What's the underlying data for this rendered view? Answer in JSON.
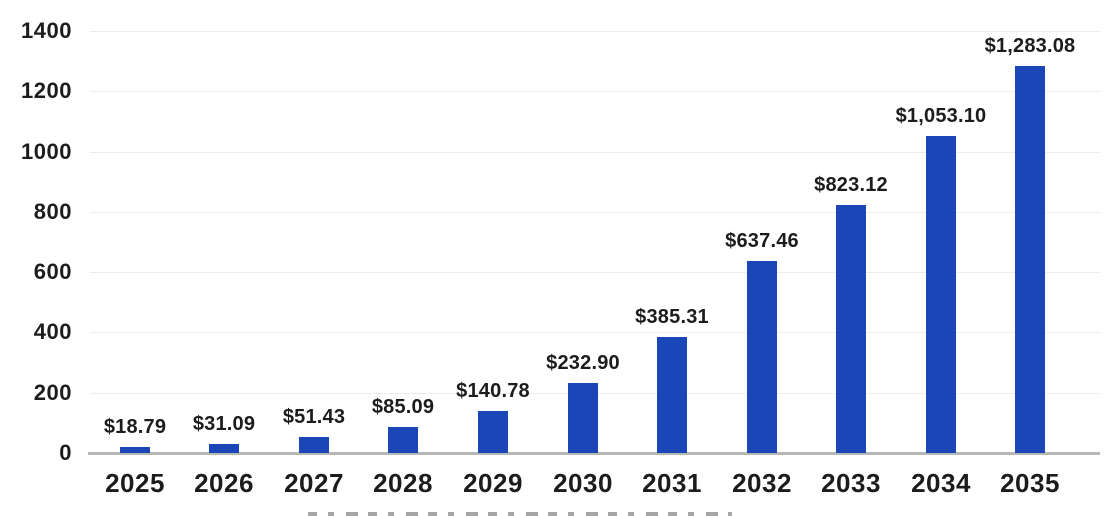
{
  "chart_data": {
    "type": "bar",
    "title": "",
    "categories": [
      "2025",
      "2026",
      "2027",
      "2028",
      "2029",
      "2030",
      "2031",
      "2032",
      "2033",
      "2034",
      "2035"
    ],
    "values": [
      18.79,
      31.09,
      51.43,
      85.09,
      140.78,
      232.9,
      385.31,
      637.46,
      823.12,
      1053.1,
      1283.08
    ],
    "data_labels": [
      "$18.79",
      "$31.09",
      "$51.43",
      "$85.09",
      "$140.78",
      "$232.90",
      "$385.31",
      "$637.46",
      "$823.12",
      "$1,053.10",
      "$1,283.08"
    ],
    "xlabel": "",
    "ylabel": "",
    "ylim": [
      0,
      1400
    ],
    "y_ticks": [
      0,
      200,
      400,
      600,
      800,
      1000,
      1200,
      1400
    ],
    "grid": true,
    "legend_position": "none",
    "colors": {
      "bar": "#1B46B8",
      "gridline": "#ececec",
      "axis_line": "#b7b7b7",
      "text": "#1c1c1c",
      "background": "#ffffff"
    }
  }
}
